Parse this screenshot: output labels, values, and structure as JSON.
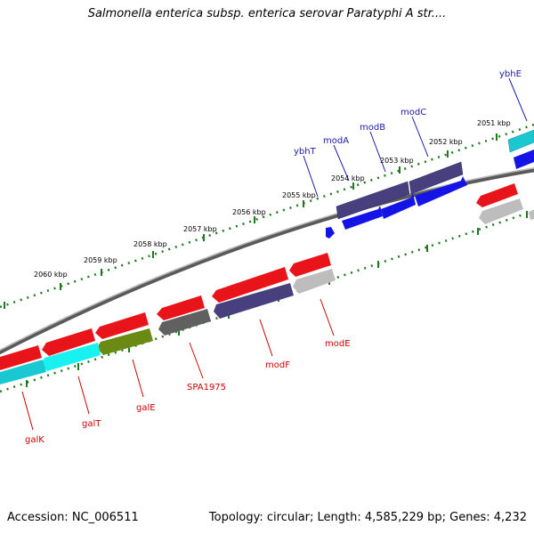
{
  "title": "Salmonella enterica subsp. enterica serovar Paratyphi A str....",
  "footer": {
    "accession": "Accession: NC_006511",
    "topology": "Topology: circular; Length: 4,585,229 bp; Genes: 4,232"
  },
  "colors": {
    "backbone": "#8c8c8c",
    "ticks": "#1e7a1e",
    "label_top": "#1a1aa8",
    "label_bottom": "#cc0000",
    "red": "#e8141a",
    "blue": "#1414e6",
    "navy": "#48407e",
    "cyan": "#19c8d0",
    "olive": "#6b8a14",
    "gray": "#bdbdbd",
    "darkgray": "#606060"
  },
  "scale_labels": [
    "2051 kbp",
    "2052 kbp",
    "2053 kbp",
    "2054 kbp",
    "2055 kbp",
    "2056 kbp",
    "2057 kbp",
    "2058 kbp",
    "2059 kbp",
    "2060 kbp"
  ],
  "top_genes": [
    "ybhE",
    "modC",
    "modB",
    "modA",
    "ybhT"
  ],
  "bottom_genes": [
    "galK",
    "galT",
    "galE",
    "SPA1975",
    "modF",
    "modE"
  ]
}
